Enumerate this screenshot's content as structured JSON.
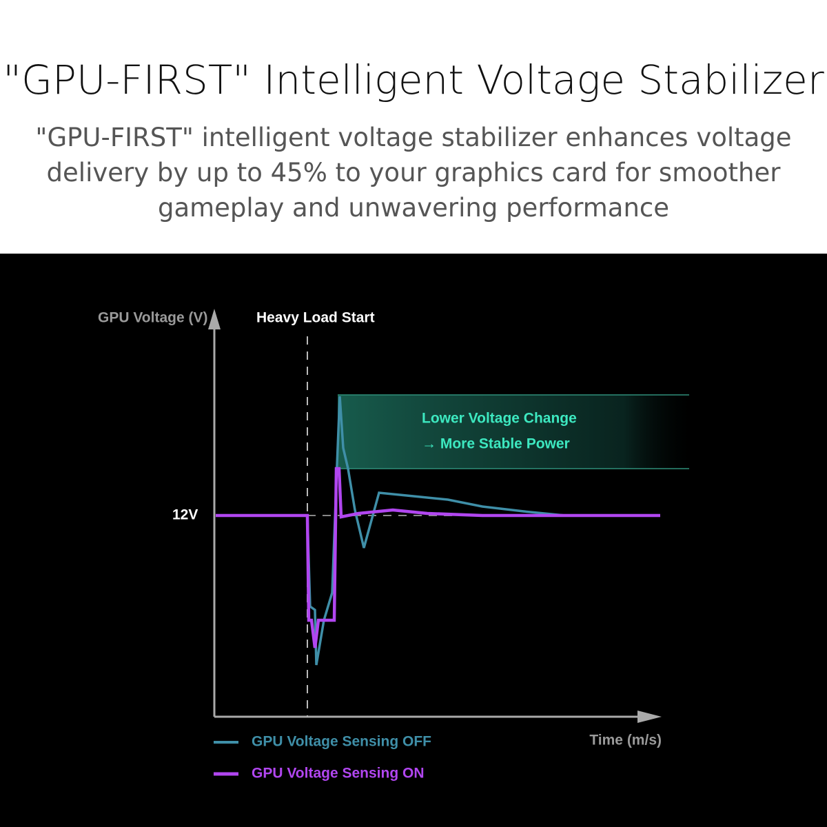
{
  "header": {
    "title": "\"GPU-FIRST\" Intelligent Voltage Stabilizer",
    "subtitle": [
      "\"GPU-FIRST\" intelligent voltage stabilizer enhances voltage",
      "delivery by up to 45% to your graphics card for smoother",
      "gameplay and unwavering performance"
    ]
  },
  "diagram": {
    "y_axis_label": "GPU Voltage (V)",
    "x_axis_label": "Time (m/s)",
    "event_label": "Heavy Load Start",
    "reference_label": "12V",
    "annotation": [
      "Lower Voltage Change",
      "→ More Stable Power"
    ],
    "legend": [
      {
        "label": "GPU Voltage Sensing OFF",
        "color": "#3f8fa8"
      },
      {
        "label": "GPU Voltage Sensing ON",
        "color": "#b146f0"
      }
    ]
  }
}
